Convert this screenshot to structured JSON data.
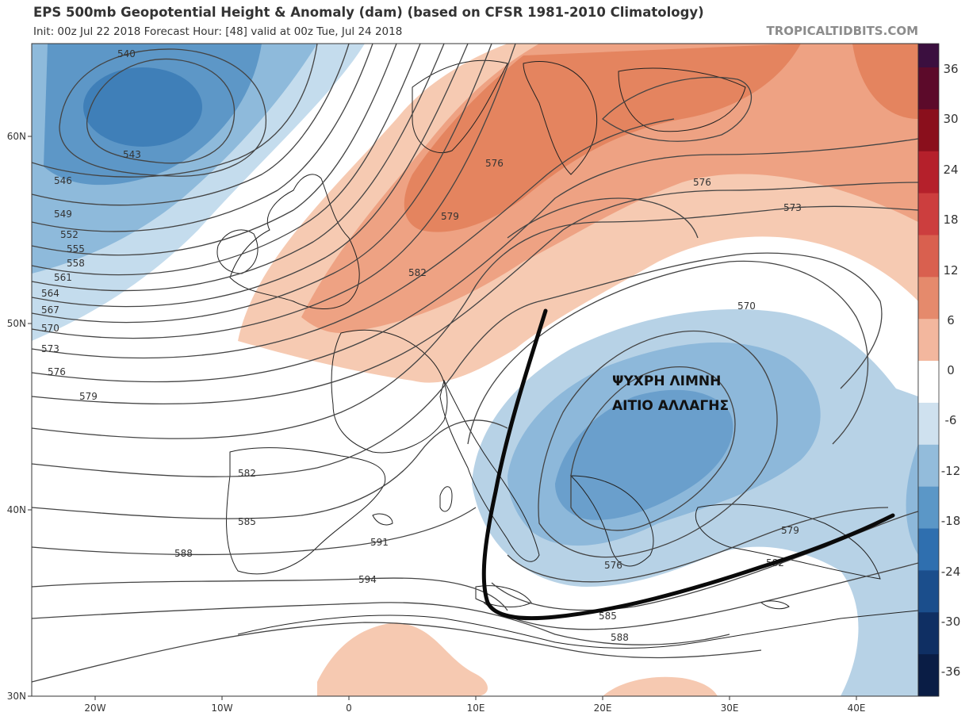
{
  "header": {
    "title": "EPS 500mb Geopotential Height & Anomaly (dam) (based on CFSR 1981-2010 Climatology)",
    "subtitle": "Init: 00z Jul 22 2018   Forecast Hour: [48]   valid at 00z Tue, Jul 24 2018",
    "source": "TROPICALTIDBITS.COM"
  },
  "axes": {
    "lon_ticks": [
      "20W",
      "10W",
      "0",
      "10E",
      "20E",
      "30E",
      "40E"
    ],
    "lat_ticks": [
      "60N",
      "50N",
      "40N",
      "30N"
    ]
  },
  "colorbar": {
    "labels": [
      "36",
      "30",
      "24",
      "18",
      "12",
      "6",
      "0",
      "-6",
      "-12",
      "-18",
      "-24",
      "-30",
      "-36"
    ],
    "colors": [
      "#3b0f3f",
      "#5c0a2a",
      "#8a0f1c",
      "#b5202b",
      "#cc3e3e",
      "#d9604f",
      "#e58a6c",
      "#f3b79e",
      "#ffffff",
      "#cfe1ef",
      "#93bcdb",
      "#5b97c7",
      "#2f6faf",
      "#1b4e8c",
      "#0f2f63",
      "#0a1d45"
    ]
  },
  "contours": {
    "labels": [
      "540",
      "543",
      "546",
      "549",
      "552",
      "555",
      "558",
      "561",
      "564",
      "567",
      "570",
      "573",
      "576",
      "579",
      "582",
      "585",
      "588",
      "591",
      "594",
      "576",
      "579",
      "582",
      "576",
      "573",
      "570",
      "579",
      "582",
      "576",
      "585",
      "588"
    ]
  },
  "annotation": {
    "line1": "ΨΥΧΡΗ ΛΙΜΝΗ",
    "line2": "ΑΙΤΙΟ ΑΛΛΑΓΗΣ"
  },
  "colors": {
    "warm_light": "#f6c9b1",
    "warm_mid": "#ec9b78",
    "warm_strong": "#de7b58",
    "cold_light": "#b7d2e6",
    "cold_mid": "#8db8da",
    "cold_strong": "#5a94c6",
    "contour": "#444444"
  }
}
